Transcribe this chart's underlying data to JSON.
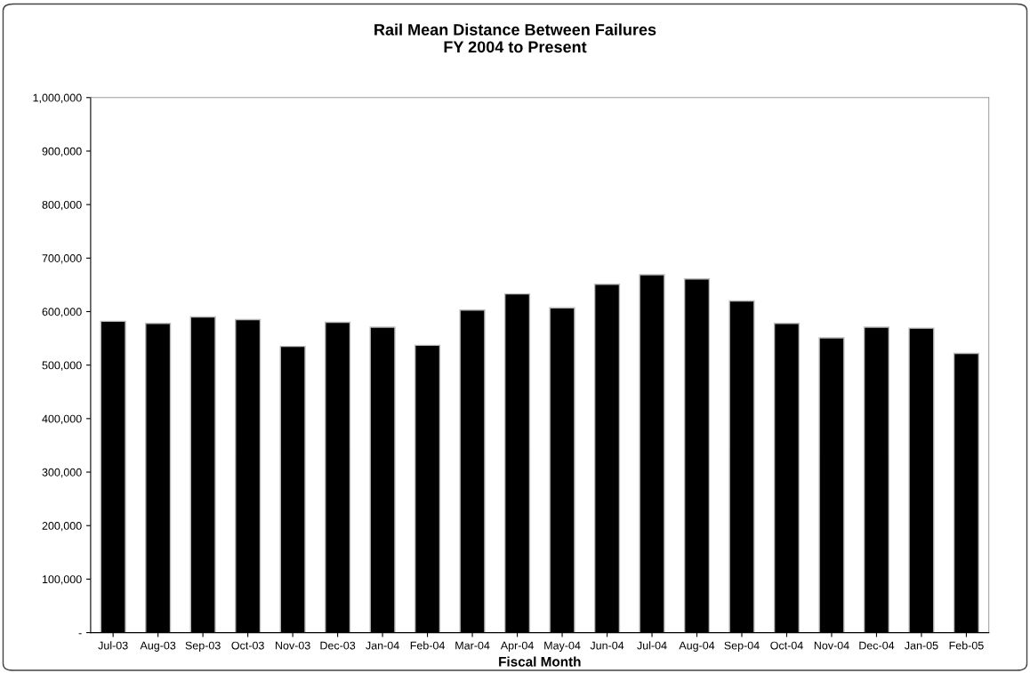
{
  "chart_data": {
    "type": "bar",
    "title": "Rail Mean Distance Between Failures\nFY 2004 to Present",
    "xlabel": "Fiscal Month",
    "categories": [
      "Jul-03",
      "Aug-03",
      "Sep-03",
      "Oct-03",
      "Nov-03",
      "Dec-03",
      "Jan-04",
      "Feb-04",
      "Mar-04",
      "Apr-04",
      "May-04",
      "Jun-04",
      "Jul-04",
      "Aug-04",
      "Sep-04",
      "Oct-04",
      "Nov-04",
      "Dec-04",
      "Jan-05",
      "Feb-05"
    ],
    "values": [
      582000,
      578000,
      590000,
      585000,
      535000,
      580000,
      571000,
      537000,
      603000,
      633000,
      607000,
      651000,
      669000,
      661000,
      620000,
      578000,
      551000,
      571000,
      569000,
      522000
    ],
    "color": "#000000",
    "ylim": [
      0,
      1000000
    ],
    "yticks": [
      {
        "value": 0,
        "label": "-"
      },
      {
        "value": 100000,
        "label": "100,000"
      },
      {
        "value": 200000,
        "label": "200,000"
      },
      {
        "value": 300000,
        "label": "300,000"
      },
      {
        "value": 400000,
        "label": "400,000"
      },
      {
        "value": 500000,
        "label": "500,000"
      },
      {
        "value": 600000,
        "label": "600,000"
      },
      {
        "value": 700000,
        "label": "700,000"
      },
      {
        "value": 800000,
        "label": "800,000"
      },
      {
        "value": 900000,
        "label": "900,000"
      },
      {
        "value": 1000000,
        "label": "1,000,000"
      }
    ],
    "grid": false,
    "legend": false
  }
}
